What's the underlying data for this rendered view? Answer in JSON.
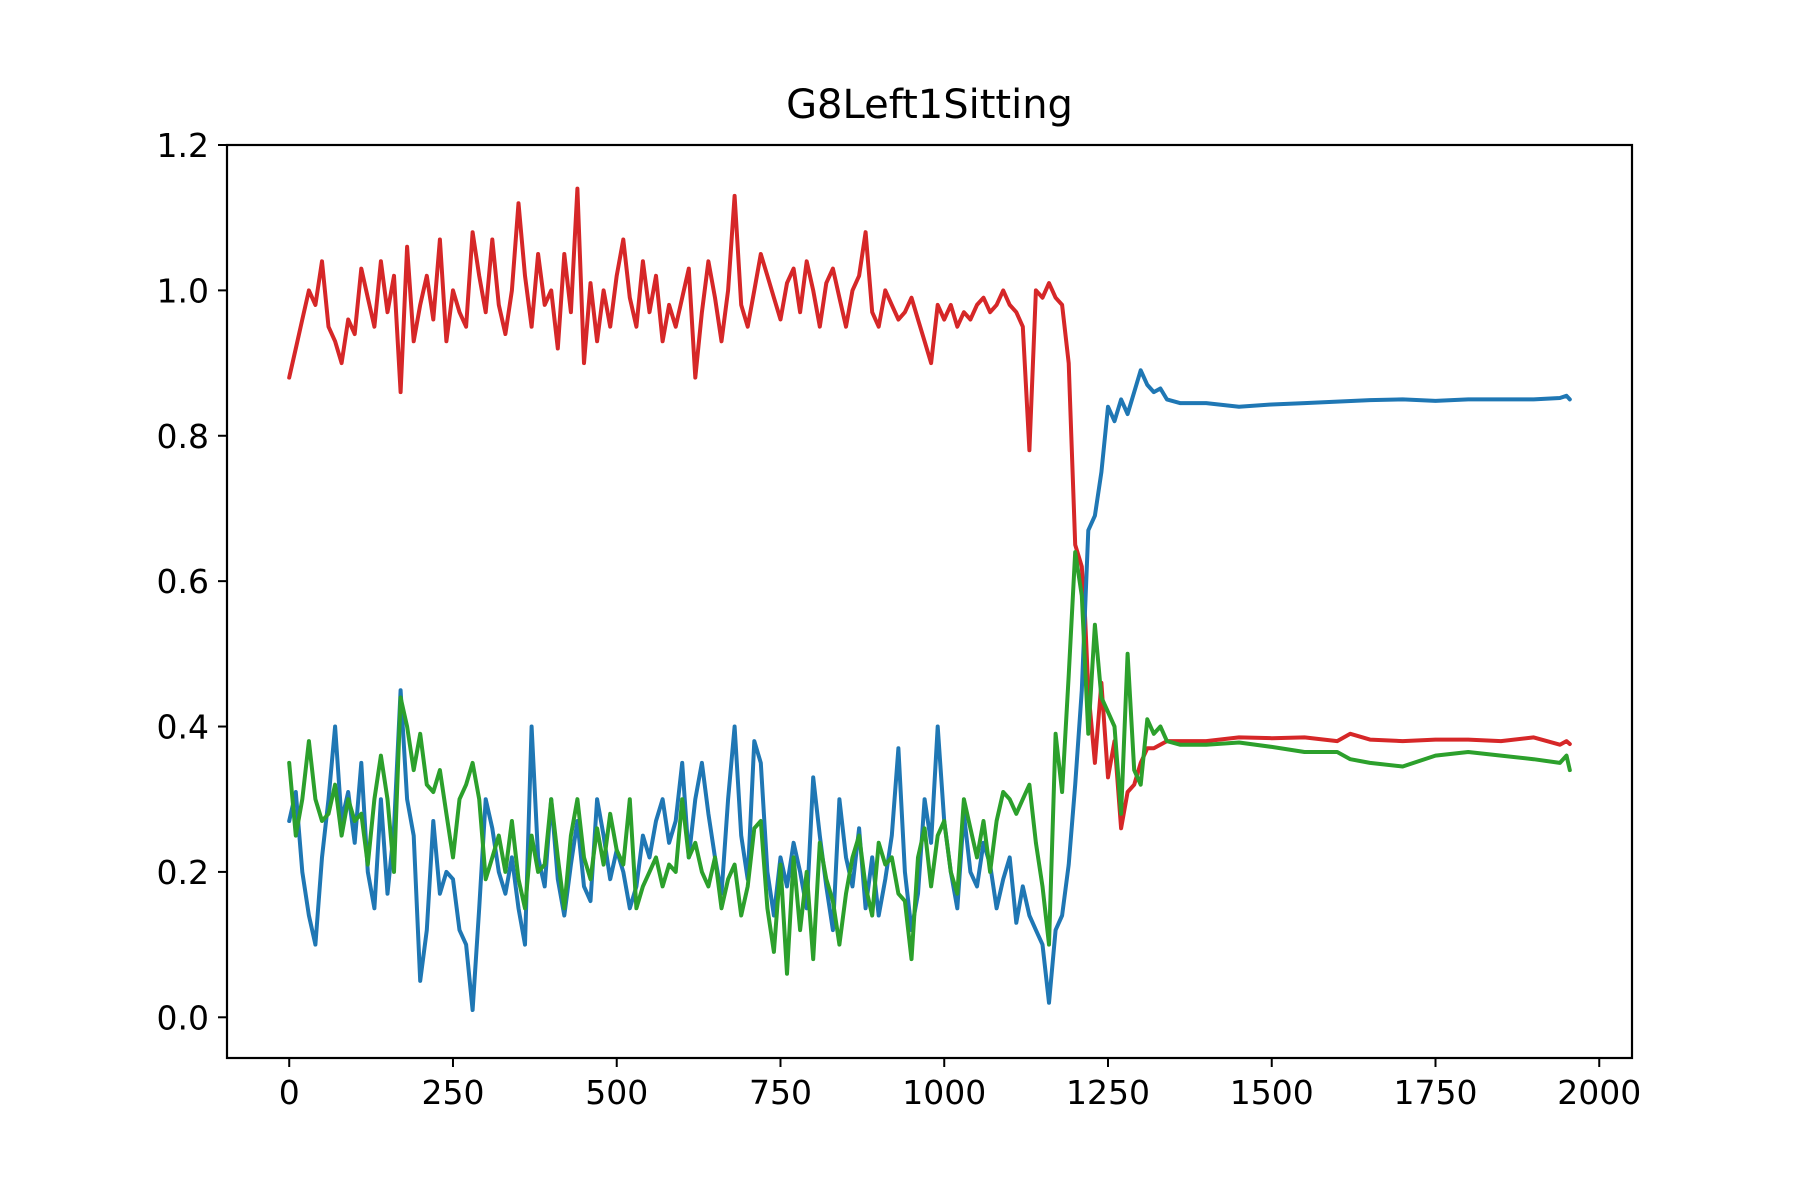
{
  "chart_data": {
    "type": "line",
    "title": "G8Left1Sitting",
    "xlabel": "",
    "ylabel": "",
    "xlim": [
      -95,
      2050
    ],
    "ylim": [
      -0.056,
      1.2
    ],
    "x_ticks": [
      0,
      250,
      500,
      750,
      1000,
      1250,
      1500,
      1750,
      2000
    ],
    "x_tick_labels": [
      "0",
      "250",
      "500",
      "750",
      "1000",
      "1250",
      "1500",
      "1750",
      "2000"
    ],
    "y_ticks": [
      0.0,
      0.2,
      0.4,
      0.6,
      0.8,
      1.0,
      1.2
    ],
    "y_tick_labels": [
      "0.0",
      "0.2",
      "0.4",
      "0.6",
      "0.8",
      "1.0",
      "1.2"
    ],
    "grid": false,
    "legend": "none",
    "series": [
      {
        "color": "#d62728",
        "x": [
          0,
          10,
          20,
          30,
          40,
          50,
          60,
          70,
          80,
          90,
          100,
          110,
          120,
          130,
          140,
          150,
          160,
          170,
          180,
          190,
          200,
          210,
          220,
          230,
          240,
          250,
          260,
          270,
          280,
          290,
          300,
          310,
          320,
          330,
          340,
          350,
          360,
          370,
          380,
          390,
          400,
          410,
          420,
          430,
          440,
          450,
          460,
          470,
          480,
          490,
          500,
          510,
          520,
          530,
          540,
          550,
          560,
          570,
          580,
          590,
          600,
          610,
          620,
          630,
          640,
          650,
          660,
          670,
          680,
          690,
          700,
          710,
          720,
          730,
          740,
          750,
          760,
          770,
          780,
          790,
          800,
          810,
          820,
          830,
          840,
          850,
          860,
          870,
          880,
          890,
          900,
          910,
          920,
          930,
          940,
          950,
          960,
          970,
          980,
          990,
          1000,
          1010,
          1020,
          1030,
          1040,
          1050,
          1060,
          1070,
          1080,
          1090,
          1100,
          1110,
          1120,
          1130,
          1140,
          1150,
          1160,
          1170,
          1180,
          1190,
          1200,
          1210,
          1215,
          1220,
          1230,
          1240,
          1250,
          1260,
          1270,
          1280,
          1290,
          1300,
          1310,
          1320,
          1340,
          1360,
          1400,
          1450,
          1500,
          1550,
          1600,
          1620,
          1650,
          1700,
          1750,
          1800,
          1850,
          1900,
          1940,
          1950,
          1955
        ],
        "values": [
          0.88,
          0.92,
          0.96,
          1.0,
          0.98,
          1.04,
          0.95,
          0.93,
          0.9,
          0.96,
          0.94,
          1.03,
          0.99,
          0.95,
          1.04,
          0.97,
          1.02,
          0.86,
          1.06,
          0.93,
          0.98,
          1.02,
          0.96,
          1.07,
          0.93,
          1.0,
          0.97,
          0.95,
          1.08,
          1.02,
          0.97,
          1.07,
          0.98,
          0.94,
          1.0,
          1.12,
          1.02,
          0.95,
          1.05,
          0.98,
          1.0,
          0.92,
          1.05,
          0.97,
          1.14,
          0.9,
          1.01,
          0.93,
          1.0,
          0.95,
          1.02,
          1.07,
          0.99,
          0.95,
          1.04,
          0.97,
          1.02,
          0.93,
          0.98,
          0.95,
          0.99,
          1.03,
          0.88,
          0.97,
          1.04,
          0.99,
          0.93,
          1.0,
          1.13,
          0.98,
          0.95,
          1.0,
          1.05,
          1.02,
          0.99,
          0.96,
          1.01,
          1.03,
          0.97,
          1.04,
          1.0,
          0.95,
          1.01,
          1.03,
          0.99,
          0.95,
          1.0,
          1.02,
          1.08,
          0.97,
          0.95,
          1.0,
          0.98,
          0.96,
          0.97,
          0.99,
          0.96,
          0.93,
          0.9,
          0.98,
          0.96,
          0.98,
          0.95,
          0.97,
          0.96,
          0.98,
          0.99,
          0.97,
          0.98,
          1.0,
          0.98,
          0.97,
          0.95,
          0.78,
          1.0,
          0.99,
          1.01,
          0.99,
          0.98,
          0.9,
          0.65,
          0.62,
          0.55,
          0.45,
          0.35,
          0.46,
          0.33,
          0.38,
          0.26,
          0.31,
          0.32,
          0.35,
          0.37,
          0.37,
          0.38,
          0.38,
          0.38,
          0.385,
          0.384,
          0.385,
          0.38,
          0.39,
          0.382,
          0.38,
          0.382,
          0.382,
          0.38,
          0.385,
          0.375,
          0.38,
          0.376
        ]
      },
      {
        "color": "#1f77b4",
        "x": [
          0,
          10,
          20,
          30,
          40,
          50,
          60,
          70,
          80,
          90,
          100,
          110,
          120,
          130,
          140,
          150,
          160,
          170,
          180,
          190,
          200,
          210,
          220,
          230,
          240,
          250,
          260,
          270,
          280,
          290,
          300,
          310,
          320,
          330,
          340,
          350,
          360,
          370,
          380,
          390,
          400,
          410,
          420,
          430,
          440,
          450,
          460,
          470,
          480,
          490,
          500,
          510,
          520,
          530,
          540,
          550,
          560,
          570,
          580,
          590,
          600,
          610,
          620,
          630,
          640,
          650,
          660,
          670,
          680,
          690,
          700,
          710,
          720,
          730,
          740,
          750,
          760,
          770,
          780,
          790,
          800,
          810,
          820,
          830,
          840,
          850,
          860,
          870,
          880,
          890,
          900,
          910,
          920,
          930,
          940,
          950,
          960,
          970,
          980,
          990,
          1000,
          1010,
          1020,
          1030,
          1040,
          1050,
          1060,
          1070,
          1080,
          1090,
          1100,
          1110,
          1120,
          1130,
          1140,
          1150,
          1160,
          1170,
          1180,
          1190,
          1200,
          1210,
          1220,
          1230,
          1240,
          1250,
          1260,
          1270,
          1280,
          1290,
          1300,
          1310,
          1320,
          1330,
          1340,
          1360,
          1400,
          1450,
          1500,
          1550,
          1600,
          1650,
          1700,
          1750,
          1800,
          1850,
          1900,
          1940,
          1950,
          1955
        ],
        "values": [
          0.27,
          0.31,
          0.2,
          0.14,
          0.1,
          0.22,
          0.3,
          0.4,
          0.27,
          0.31,
          0.24,
          0.35,
          0.2,
          0.15,
          0.3,
          0.17,
          0.26,
          0.45,
          0.3,
          0.25,
          0.05,
          0.12,
          0.27,
          0.17,
          0.2,
          0.19,
          0.12,
          0.1,
          0.01,
          0.15,
          0.3,
          0.26,
          0.2,
          0.17,
          0.22,
          0.15,
          0.1,
          0.4,
          0.22,
          0.18,
          0.3,
          0.19,
          0.14,
          0.21,
          0.27,
          0.18,
          0.16,
          0.3,
          0.25,
          0.19,
          0.23,
          0.2,
          0.15,
          0.18,
          0.25,
          0.22,
          0.27,
          0.3,
          0.24,
          0.27,
          0.35,
          0.22,
          0.3,
          0.35,
          0.28,
          0.22,
          0.17,
          0.3,
          0.4,
          0.25,
          0.19,
          0.38,
          0.35,
          0.2,
          0.14,
          0.22,
          0.18,
          0.24,
          0.2,
          0.15,
          0.33,
          0.25,
          0.18,
          0.12,
          0.3,
          0.22,
          0.18,
          0.26,
          0.15,
          0.22,
          0.14,
          0.19,
          0.25,
          0.37,
          0.2,
          0.12,
          0.17,
          0.3,
          0.24,
          0.4,
          0.27,
          0.2,
          0.15,
          0.28,
          0.2,
          0.18,
          0.24,
          0.21,
          0.15,
          0.19,
          0.22,
          0.13,
          0.18,
          0.14,
          0.12,
          0.1,
          0.02,
          0.12,
          0.14,
          0.21,
          0.32,
          0.45,
          0.67,
          0.69,
          0.75,
          0.84,
          0.82,
          0.85,
          0.83,
          0.86,
          0.89,
          0.87,
          0.86,
          0.865,
          0.85,
          0.845,
          0.845,
          0.84,
          0.843,
          0.845,
          0.847,
          0.849,
          0.85,
          0.848,
          0.85,
          0.85,
          0.85,
          0.852,
          0.855,
          0.85
        ]
      },
      {
        "color": "#2ca02c",
        "x": [
          0,
          10,
          20,
          30,
          40,
          50,
          60,
          70,
          80,
          90,
          100,
          110,
          120,
          130,
          140,
          150,
          160,
          170,
          180,
          190,
          200,
          210,
          220,
          230,
          240,
          250,
          260,
          270,
          280,
          290,
          300,
          310,
          320,
          330,
          340,
          350,
          360,
          370,
          380,
          390,
          400,
          410,
          420,
          430,
          440,
          450,
          460,
          470,
          480,
          490,
          500,
          510,
          520,
          530,
          540,
          550,
          560,
          570,
          580,
          590,
          600,
          610,
          620,
          630,
          640,
          650,
          660,
          670,
          680,
          690,
          700,
          710,
          720,
          730,
          740,
          750,
          760,
          770,
          780,
          790,
          800,
          810,
          820,
          830,
          840,
          850,
          860,
          870,
          880,
          890,
          900,
          910,
          920,
          930,
          940,
          950,
          960,
          970,
          980,
          990,
          1000,
          1010,
          1020,
          1030,
          1040,
          1050,
          1060,
          1070,
          1080,
          1090,
          1100,
          1110,
          1120,
          1130,
          1140,
          1150,
          1160,
          1170,
          1180,
          1190,
          1200,
          1210,
          1220,
          1230,
          1240,
          1250,
          1260,
          1270,
          1280,
          1290,
          1300,
          1310,
          1320,
          1330,
          1340,
          1360,
          1400,
          1450,
          1500,
          1550,
          1600,
          1620,
          1650,
          1700,
          1750,
          1800,
          1850,
          1900,
          1940,
          1950,
          1955
        ],
        "values": [
          0.35,
          0.25,
          0.3,
          0.38,
          0.3,
          0.27,
          0.28,
          0.32,
          0.25,
          0.3,
          0.27,
          0.28,
          0.21,
          0.3,
          0.36,
          0.3,
          0.2,
          0.44,
          0.4,
          0.34,
          0.39,
          0.32,
          0.31,
          0.34,
          0.28,
          0.22,
          0.3,
          0.32,
          0.35,
          0.3,
          0.19,
          0.22,
          0.25,
          0.2,
          0.27,
          0.19,
          0.15,
          0.25,
          0.2,
          0.21,
          0.3,
          0.22,
          0.15,
          0.25,
          0.3,
          0.22,
          0.19,
          0.26,
          0.21,
          0.28,
          0.23,
          0.21,
          0.3,
          0.15,
          0.18,
          0.2,
          0.22,
          0.18,
          0.21,
          0.2,
          0.3,
          0.22,
          0.24,
          0.2,
          0.18,
          0.22,
          0.15,
          0.19,
          0.21,
          0.14,
          0.18,
          0.26,
          0.27,
          0.15,
          0.09,
          0.21,
          0.06,
          0.22,
          0.12,
          0.2,
          0.08,
          0.24,
          0.19,
          0.16,
          0.1,
          0.17,
          0.22,
          0.25,
          0.18,
          0.14,
          0.24,
          0.21,
          0.22,
          0.17,
          0.16,
          0.08,
          0.22,
          0.26,
          0.18,
          0.25,
          0.27,
          0.2,
          0.17,
          0.3,
          0.26,
          0.22,
          0.27,
          0.2,
          0.27,
          0.31,
          0.3,
          0.28,
          0.3,
          0.32,
          0.24,
          0.18,
          0.1,
          0.39,
          0.31,
          0.47,
          0.64,
          0.58,
          0.39,
          0.54,
          0.44,
          0.42,
          0.4,
          0.28,
          0.5,
          0.34,
          0.32,
          0.41,
          0.39,
          0.4,
          0.38,
          0.375,
          0.375,
          0.378,
          0.372,
          0.365,
          0.365,
          0.355,
          0.35,
          0.345,
          0.36,
          0.365,
          0.36,
          0.355,
          0.35,
          0.36,
          0.34
        ]
      }
    ]
  }
}
